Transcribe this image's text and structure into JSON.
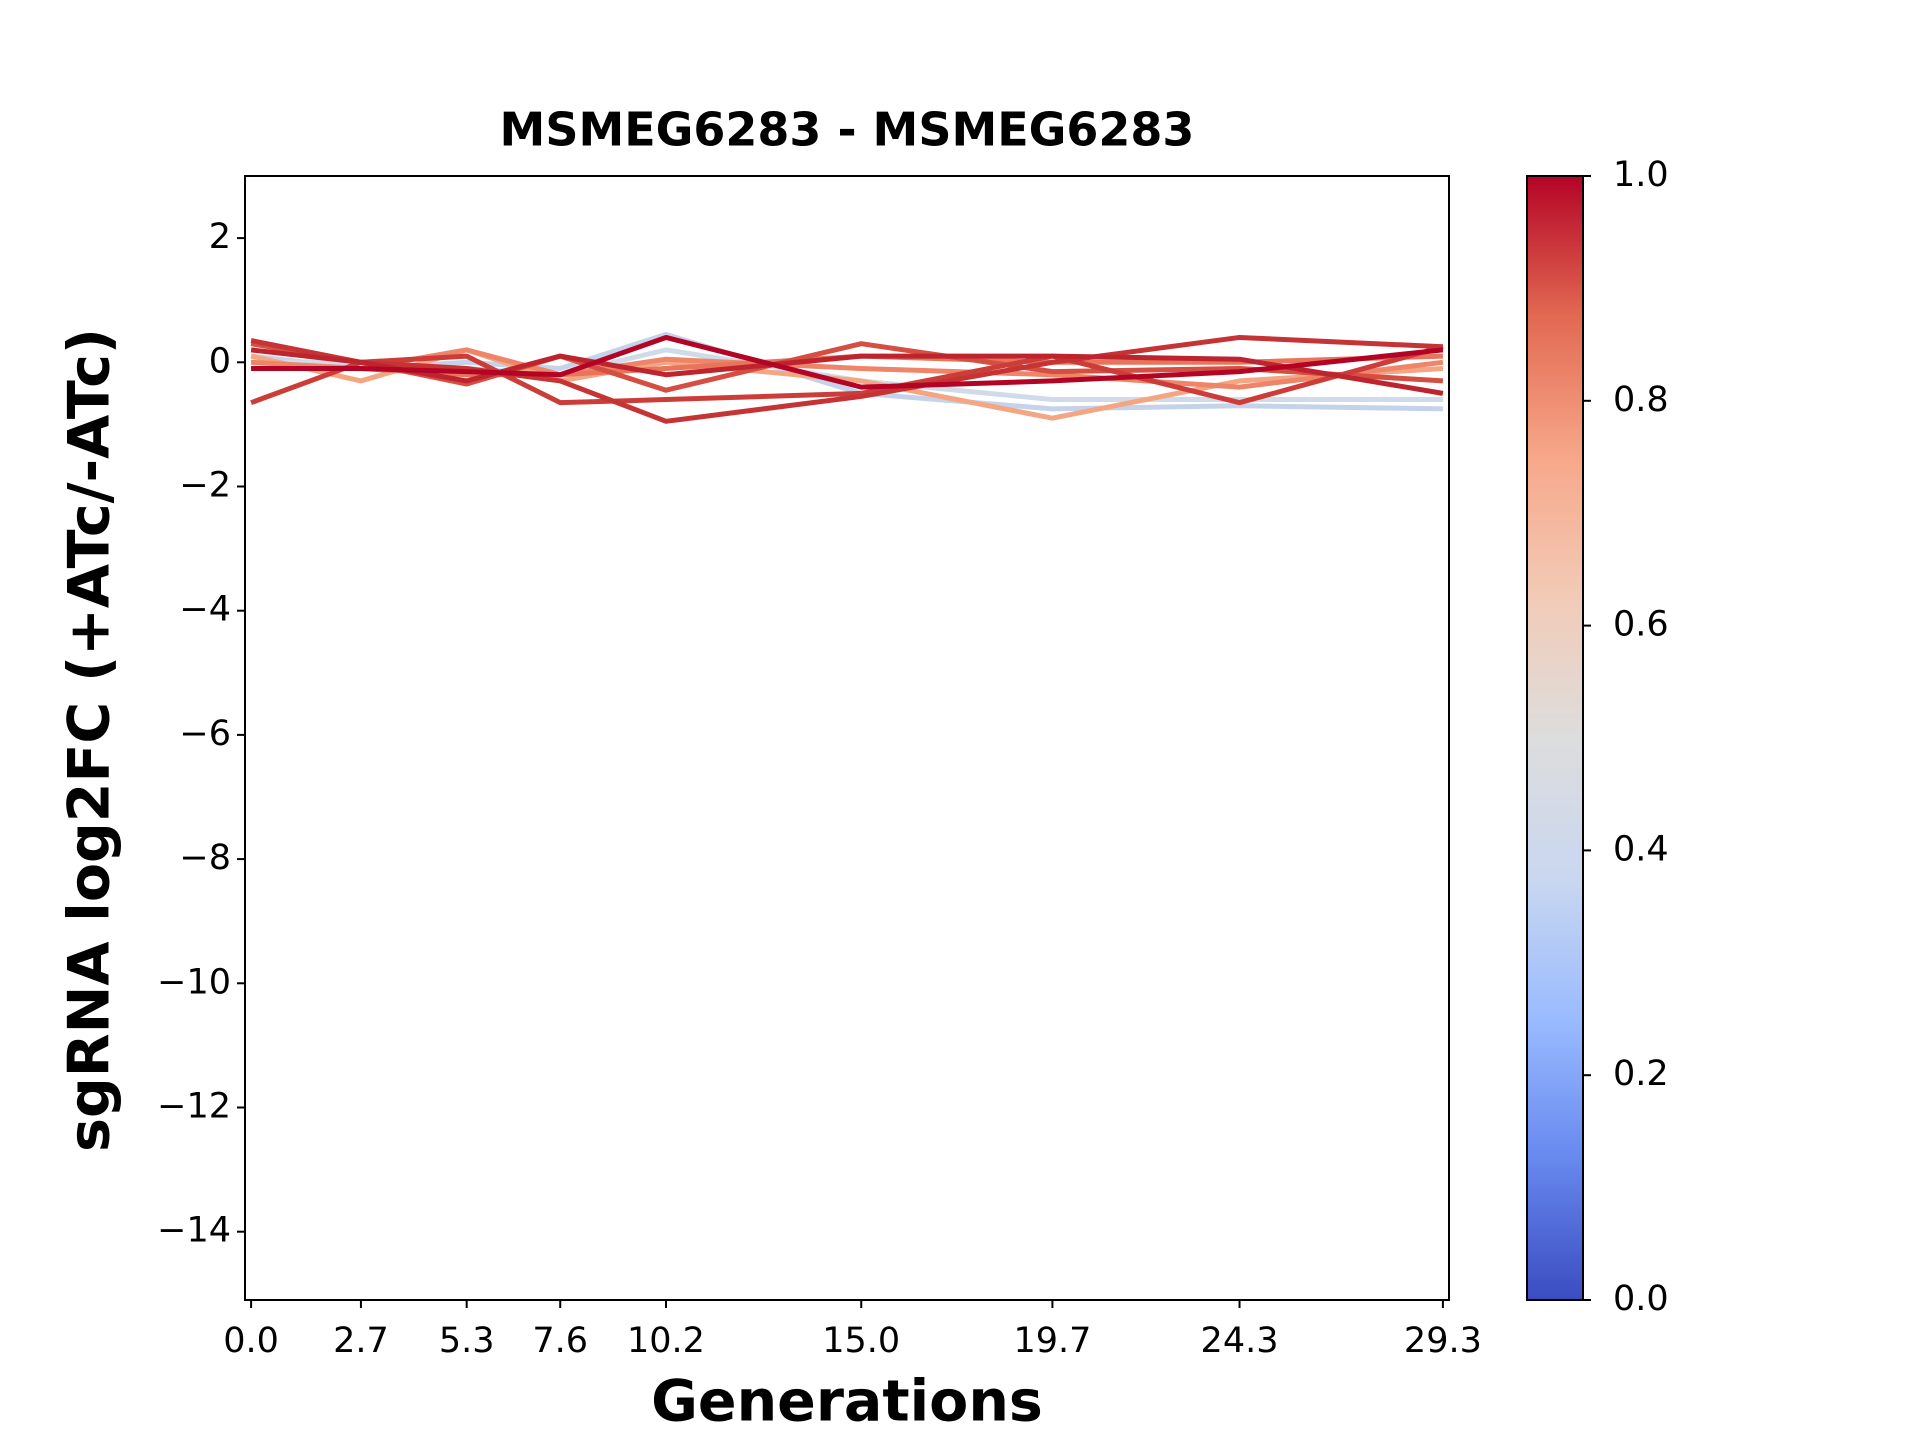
{
  "chart_data": {
    "type": "line",
    "title": "MSMEG6283 - MSMEG6283",
    "x_label": "Generations",
    "y_label": "sgRNA log2FC (+ATc/-ATc)",
    "x": [
      0.0,
      2.7,
      5.3,
      7.6,
      10.2,
      15.0,
      19.7,
      24.3,
      29.3
    ],
    "xlim": [
      -0.15,
      29.45
    ],
    "xticks": [
      {
        "value": 0,
        "label": "0.0"
      },
      2.7,
      5.3,
      7.6,
      10.2,
      {
        "value": 15,
        "label": "15.0"
      },
      19.7,
      24.3,
      29.3
    ],
    "ylim": [
      -15.1,
      3
    ],
    "yticks": [
      {
        "value": -14,
        "label": "−14"
      },
      {
        "value": -12,
        "label": "−12"
      },
      {
        "value": -10,
        "label": "−10"
      },
      {
        "value": -8,
        "label": "−8"
      },
      {
        "value": -6,
        "label": "−6"
      },
      {
        "value": -4,
        "label": "−4"
      },
      {
        "value": -2,
        "label": "−2"
      },
      0,
      2
    ],
    "series": [
      {
        "color": "#c5d3ea",
        "values": [
          0.1,
          -0.1,
          0.0,
          -0.1,
          0.45,
          -0.5,
          -0.75,
          -0.7,
          -0.75
        ]
      },
      {
        "color": "#d0dbe9",
        "values": [
          0.0,
          0.0,
          -0.1,
          -0.2,
          0.2,
          -0.3,
          -0.6,
          -0.6,
          -0.6
        ]
      },
      {
        "color": "#f4a582",
        "values": [
          0.1,
          -0.3,
          0.2,
          -0.3,
          0.0,
          -0.3,
          -0.9,
          -0.3,
          -0.1
        ]
      },
      {
        "color": "#ee8468",
        "values": [
          0.0,
          -0.1,
          0.2,
          -0.2,
          0.05,
          -0.1,
          -0.2,
          -0.4,
          0.0
        ]
      },
      {
        "color": "#e7745b",
        "values": [
          -0.1,
          -0.1,
          -0.2,
          -0.2,
          -0.1,
          0.1,
          0.0,
          0.0,
          0.1
        ]
      },
      {
        "color": "#d44e41",
        "values": [
          0.3,
          0.0,
          -0.35,
          0.1,
          -0.45,
          0.3,
          -0.15,
          -0.1,
          -0.3
        ]
      },
      {
        "color": "#cc3d3a",
        "values": [
          -0.65,
          0.0,
          0.1,
          -0.65,
          -0.6,
          -0.5,
          0.1,
          -0.65,
          0.25
        ]
      },
      {
        "color": "#c53334",
        "values": [
          0.35,
          0.0,
          -0.1,
          -0.3,
          -0.95,
          -0.55,
          0.0,
          0.4,
          0.25
        ]
      },
      {
        "color": "#be242e",
        "values": [
          0.2,
          0.0,
          -0.3,
          0.1,
          -0.2,
          0.1,
          0.1,
          0.05,
          -0.5
        ]
      },
      {
        "color": "#b40426",
        "values": [
          -0.1,
          -0.1,
          -0.15,
          -0.2,
          0.4,
          -0.4,
          -0.3,
          -0.15,
          0.2
        ]
      }
    ],
    "colorbar": {
      "lim": [
        0,
        1
      ],
      "ticks": [
        {
          "value": 0,
          "label": "0.0"
        },
        0.2,
        0.4,
        0.6,
        0.8,
        {
          "value": 1,
          "label": "1.0"
        }
      ],
      "colors": [
        "#3b4cc0",
        "#6788ee",
        "#9abbff",
        "#c9d7f0",
        "#dddddd",
        "#f2cbb7",
        "#f7a789",
        "#e26952",
        "#b40426"
      ]
    }
  }
}
